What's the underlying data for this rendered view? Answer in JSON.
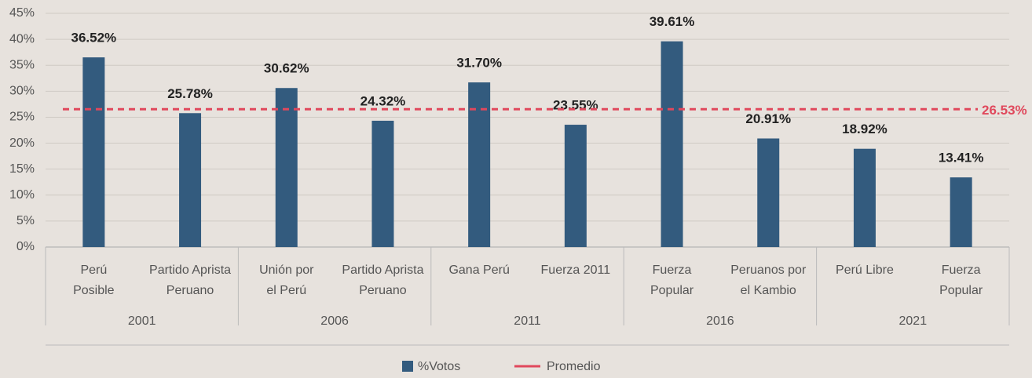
{
  "chart_data": {
    "type": "bar",
    "categories": [
      "Perú\nPosible",
      "Partido Aprista\nPeruano",
      "Unión por\nel Perú",
      "Partido Aprista\nPeruano",
      "Gana Perú",
      "Fuerza 2011",
      "Fuerza\nPopular",
      "Peruanos por\nel Kambio",
      "Perú Libre",
      "Fuerza\nPopular"
    ],
    "groups": [
      "2001",
      "2006",
      "2011",
      "2016",
      "2021"
    ],
    "series": [
      {
        "name": "%Votos",
        "color": "#335b7e",
        "values": [
          36.52,
          25.78,
          30.62,
          24.32,
          31.7,
          23.55,
          39.61,
          20.91,
          18.92,
          13.41
        ],
        "value_labels": [
          "36.52%",
          "25.78%",
          "30.62%",
          "24.32%",
          "31.70%",
          "23.55%",
          "39.61%",
          "20.91%",
          "18.92%",
          "13.41%"
        ]
      }
    ],
    "average": {
      "name": "Promedio",
      "value": 26.53,
      "label": "26.53%",
      "color": "#e0485c"
    },
    "ylim": [
      0,
      45
    ],
    "yticks": [
      {
        "value": 0,
        "label": "0%"
      },
      {
        "value": 5,
        "label": "5%"
      },
      {
        "value": 10,
        "label": "10%"
      },
      {
        "value": 15,
        "label": "15%"
      },
      {
        "value": 20,
        "label": "20%"
      },
      {
        "value": 25,
        "label": "25%"
      },
      {
        "value": 30,
        "label": "30%"
      },
      {
        "value": 35,
        "label": "35%"
      },
      {
        "value": 40,
        "label": "40%"
      },
      {
        "value": 45,
        "label": "45%"
      }
    ],
    "grid": true,
    "legend": "bottom"
  }
}
